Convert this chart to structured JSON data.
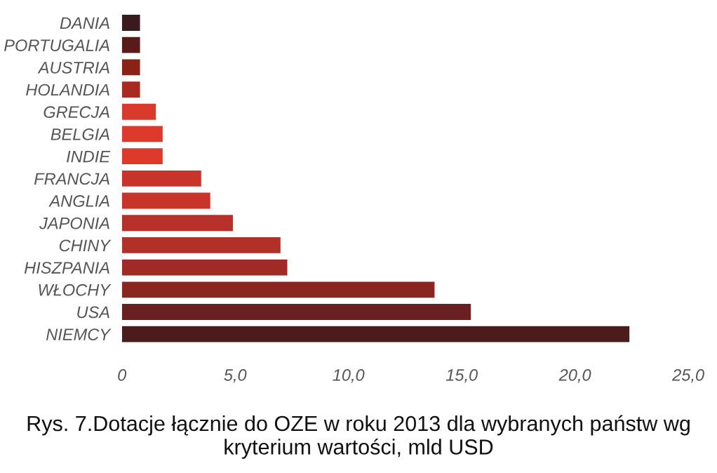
{
  "chart_data": {
    "type": "bar",
    "orientation": "horizontal",
    "categories": [
      "DANIA",
      "PORTUGALIA",
      "AUSTRIA",
      "HOLANDIA",
      "GRECJA",
      "BELGIA",
      "INDIE",
      "FRANCJA",
      "ANGLIA",
      "JAPONIA",
      "CHINY",
      "HISZPANIA",
      "WŁOCHY",
      "USA",
      "NIEMCY"
    ],
    "values": [
      0.8,
      0.8,
      0.8,
      0.8,
      1.5,
      1.8,
      1.8,
      3.5,
      3.9,
      4.9,
      7.0,
      7.3,
      13.8,
      15.4,
      22.4
    ],
    "colors": [
      "#3a1a1c",
      "#5a1a1a",
      "#8a2218",
      "#a82a20",
      "#d83a2c",
      "#dd3a2c",
      "#dd3a2c",
      "#c8342a",
      "#c8342a",
      "#b8302a",
      "#b0302a",
      "#a02a24",
      "#8a2620",
      "#6a2020",
      "#4a1c1c"
    ],
    "xlim": [
      0,
      25
    ],
    "xticks": [
      0,
      {
        "value": 5,
        "label": "5,0"
      },
      {
        "value": 10,
        "label": "10,0"
      },
      {
        "value": 15,
        "label": "15,0"
      },
      {
        "value": 20,
        "label": "20,0"
      },
      {
        "value": 25,
        "label": "25,0"
      }
    ],
    "grid": false,
    "annotations": [
      "Rys. 7.Dotacje łącznie do OZE w roku 2013 dla wybranych państw wg kryterium wartości, mld USD"
    ]
  }
}
